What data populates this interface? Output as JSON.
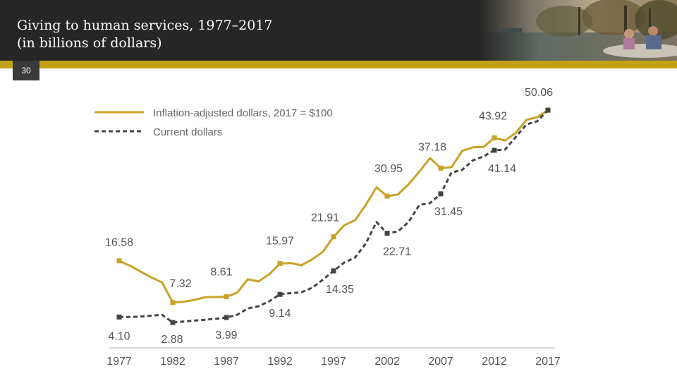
{
  "slide": {
    "title_line1": "Giving to human services, 1977–2017",
    "title_line2": "(in billions of dollars)",
    "page_number": "30"
  },
  "colors": {
    "accent": "#c5a114",
    "series1": "#c9a227",
    "series2": "#444444",
    "header_bg": "#262626"
  },
  "chart_data": {
    "type": "line",
    "title": "Giving to human services, 1977–2017 (in billions of dollars)",
    "xlabel": "",
    "ylabel": "",
    "ylim": [
      0,
      55
    ],
    "grid": false,
    "legend_position": "top-left",
    "x_ticks": [
      "1977",
      "1982",
      "1987",
      "1992",
      "1997",
      "2002",
      "2007",
      "2012",
      "2017"
    ],
    "series": [
      {
        "name": "Inflation-adjusted dollars, 2017 = $100",
        "style": "solid",
        "points": [
          [
            1977,
            16.58
          ],
          [
            1978,
            15.5
          ],
          [
            1979,
            14.2
          ],
          [
            1980,
            12.9
          ],
          [
            1981,
            11.8
          ],
          [
            1982,
            7.32
          ],
          [
            1983,
            7.5
          ],
          [
            1984,
            7.9
          ],
          [
            1985,
            8.5
          ],
          [
            1986,
            8.55
          ],
          [
            1987,
            8.61
          ],
          [
            1988,
            9.5
          ],
          [
            1989,
            12.5
          ],
          [
            1990,
            12.0
          ],
          [
            1991,
            13.6
          ],
          [
            1992,
            15.97
          ],
          [
            1993,
            16.1
          ],
          [
            1994,
            15.6
          ],
          [
            1995,
            16.9
          ],
          [
            1996,
            18.6
          ],
          [
            1997,
            21.91
          ],
          [
            1998,
            24.5
          ],
          [
            1999,
            25.6
          ],
          [
            2000,
            29.0
          ],
          [
            2001,
            32.9
          ],
          [
            2002,
            30.95
          ],
          [
            2003,
            31.3
          ],
          [
            2004,
            33.6
          ],
          [
            2005,
            36.4
          ],
          [
            2006,
            39.4
          ],
          [
            2007,
            37.18
          ],
          [
            2008,
            37.4
          ],
          [
            2009,
            41.0
          ],
          [
            2010,
            41.8
          ],
          [
            2011,
            41.9
          ],
          [
            2012,
            43.92
          ],
          [
            2013,
            43.3
          ],
          [
            2014,
            45.0
          ],
          [
            2015,
            47.9
          ],
          [
            2016,
            48.5
          ],
          [
            2017,
            50.06
          ]
        ]
      },
      {
        "name": "Current dollars",
        "style": "dashed",
        "points": [
          [
            1977,
            4.1
          ],
          [
            1978,
            4.1
          ],
          [
            1979,
            4.2
          ],
          [
            1980,
            4.4
          ],
          [
            1981,
            4.6
          ],
          [
            1982,
            2.88
          ],
          [
            1983,
            3.1
          ],
          [
            1984,
            3.3
          ],
          [
            1985,
            3.5
          ],
          [
            1986,
            3.7
          ],
          [
            1987,
            3.99
          ],
          [
            1988,
            4.6
          ],
          [
            1989,
            6.0
          ],
          [
            1990,
            6.5
          ],
          [
            1991,
            7.6
          ],
          [
            1992,
            9.14
          ],
          [
            1993,
            9.4
          ],
          [
            1994,
            9.6
          ],
          [
            1995,
            10.6
          ],
          [
            1996,
            12.4
          ],
          [
            1997,
            14.35
          ],
          [
            1998,
            16.2
          ],
          [
            1999,
            17.3
          ],
          [
            2000,
            20.4
          ],
          [
            2001,
            25.2
          ],
          [
            2002,
            22.71
          ],
          [
            2003,
            23.1
          ],
          [
            2004,
            25.2
          ],
          [
            2005,
            29.0
          ],
          [
            2006,
            29.4
          ],
          [
            2007,
            31.45
          ],
          [
            2008,
            36.2
          ],
          [
            2009,
            36.8
          ],
          [
            2010,
            38.9
          ],
          [
            2011,
            39.8
          ],
          [
            2012,
            41.14
          ],
          [
            2013,
            41.3
          ],
          [
            2014,
            44.1
          ],
          [
            2015,
            46.9
          ],
          [
            2016,
            47.6
          ],
          [
            2017,
            50.06
          ]
        ]
      }
    ],
    "data_labels": [
      {
        "year": 1977,
        "series": 0,
        "text": "16.58"
      },
      {
        "year": 1982,
        "series": 0,
        "text": "7.32"
      },
      {
        "year": 1987,
        "series": 0,
        "text": "8.61"
      },
      {
        "year": 1992,
        "series": 0,
        "text": "15.97"
      },
      {
        "year": 1997,
        "series": 0,
        "text": "21.91"
      },
      {
        "year": 2002,
        "series": 0,
        "text": "30.95"
      },
      {
        "year": 2007,
        "series": 0,
        "text": "37.18"
      },
      {
        "year": 2012,
        "series": 0,
        "text": "43.92"
      },
      {
        "year": 2017,
        "series": 0,
        "text": "50.06"
      },
      {
        "year": 1977,
        "series": 1,
        "text": "4.10"
      },
      {
        "year": 1982,
        "series": 1,
        "text": "2.88"
      },
      {
        "year": 1987,
        "series": 1,
        "text": "3.99"
      },
      {
        "year": 1992,
        "series": 1,
        "text": "9.14"
      },
      {
        "year": 1997,
        "series": 1,
        "text": "14.35"
      },
      {
        "year": 2002,
        "series": 1,
        "text": "22.71"
      },
      {
        "year": 2007,
        "series": 1,
        "text": "31.45"
      },
      {
        "year": 2012,
        "series": 1,
        "text": "41.14"
      }
    ],
    "legend": [
      {
        "label": "Inflation-adjusted dollars, 2017 = $100",
        "style": "solid"
      },
      {
        "label": "Current dollars",
        "style": "dashed"
      }
    ]
  }
}
